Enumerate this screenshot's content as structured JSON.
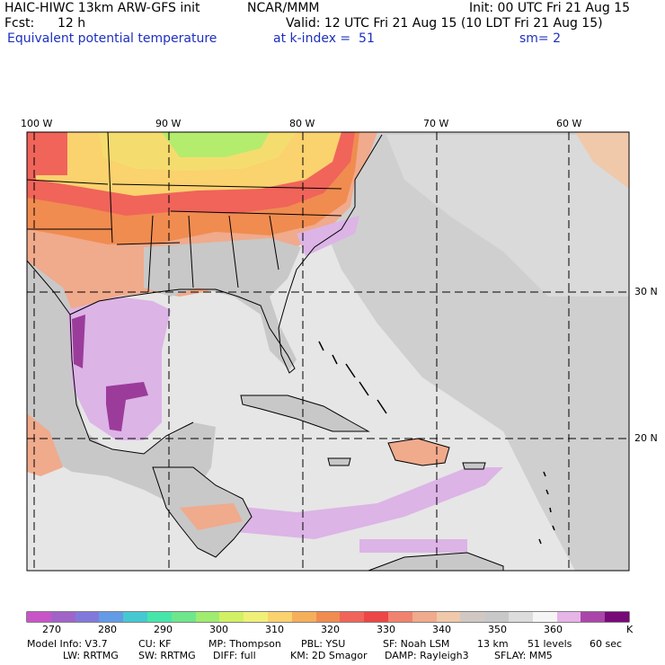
{
  "header": {
    "model": "HAIC-HIWC 13km ARW-GFS init",
    "org": "NCAR/MMM",
    "init": "Init: 00 UTC Fri 21 Aug 15",
    "fcst_label": "Fcst:",
    "fcst_value": "12 h",
    "valid": "Valid: 12 UTC Fri 21 Aug 15 (10 LDT Fri 21 Aug 15)",
    "field": "Equivalent potential temperature",
    "level": "at k-index =  51",
    "smooth": "sm= 2"
  },
  "map": {
    "lon_labels": [
      "100 W",
      "90 W",
      "80 W",
      "70 W",
      "60 W"
    ],
    "lat_labels": [
      "30 N",
      "20 N"
    ],
    "colors": {
      "ocean": "#e6e6e6",
      "land": "#c8c8c8",
      "lavender": "#dcb4e6",
      "purple": "#9b3c9b",
      "red": "#f04646",
      "orange": "#f08c50",
      "salmon": "#f0aa8c",
      "yellow": "#f5dc6e",
      "green": "#b4ec6e"
    }
  },
  "colorbar": {
    "colors": [
      "#c855c8",
      "#a064c8",
      "#8278dc",
      "#649be6",
      "#46c8d2",
      "#46e6aa",
      "#6ee68c",
      "#a0ec6e",
      "#d2f064",
      "#f0f078",
      "#fad26e",
      "#f5af5a",
      "#f08c50",
      "#f0645a",
      "#ec4646",
      "#f0826e",
      "#f0aa8c",
      "#f0c8aa",
      "#d2c8c3",
      "#c8c8c8",
      "#dcdcdc",
      "#f5f5f5",
      "#e6b4e6",
      "#aa46aa",
      "#780a78"
    ],
    "labels": [
      "270",
      "280",
      "290",
      "300",
      "310",
      "320",
      "330",
      "340",
      "350",
      "360"
    ],
    "units": "K"
  },
  "footer": {
    "line1": [
      "Model Info: V3.7",
      "CU: KF",
      "MP: Thompson",
      "PBL: YSU",
      "SF: Noah LSM",
      "13 km",
      "51 levels",
      "60 sec"
    ],
    "line2": [
      "LW: RRTMG",
      "SW: RRTMG",
      "DIFF: full",
      "KM: 2D Smagor",
      "DAMP: Rayleigh3",
      "SFLAY: MM5"
    ]
  }
}
